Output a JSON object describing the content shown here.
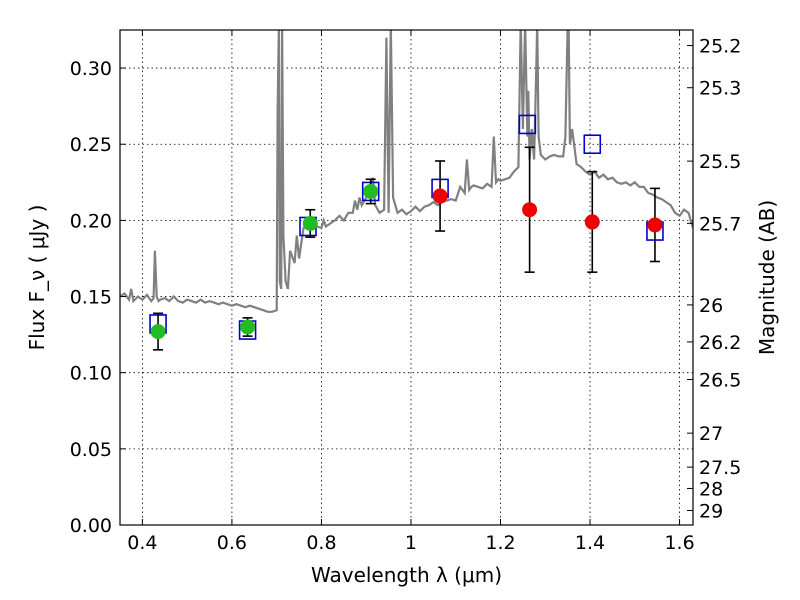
{
  "chart_data": {
    "type": "line",
    "title": "",
    "xlabel": "Wavelength  λ (μm)",
    "ylabel": "Flux  F_ν  ( μJy )",
    "ylabel_right": "Magnitude (AB)",
    "xlim": [
      0.35,
      1.63
    ],
    "ylim": [
      0.0,
      0.325
    ],
    "grid": true,
    "x_ticks": [
      {
        "value": 0.4,
        "label": "0.4"
      },
      {
        "value": 0.6,
        "label": "0.6"
      },
      {
        "value": 0.8,
        "label": "0.8"
      },
      {
        "value": 1.0,
        "label": "1"
      },
      {
        "value": 1.2,
        "label": "1.2"
      },
      {
        "value": 1.4,
        "label": "1.4"
      },
      {
        "value": 1.6,
        "label": "1.6"
      }
    ],
    "y_ticks": [
      {
        "value": 0.0,
        "label": "0.00"
      },
      {
        "value": 0.05,
        "label": "0.05"
      },
      {
        "value": 0.1,
        "label": "0.10"
      },
      {
        "value": 0.15,
        "label": "0.15"
      },
      {
        "value": 0.2,
        "label": "0.20"
      },
      {
        "value": 0.25,
        "label": "0.25"
      },
      {
        "value": 0.3,
        "label": "0.30"
      }
    ],
    "right_ticks": [
      {
        "flux": 0.3148,
        "label": "25.2"
      },
      {
        "flux": 0.2871,
        "label": "25.3"
      },
      {
        "flux": 0.2389,
        "label": "25.5"
      },
      {
        "flux": 0.1981,
        "label": "25.7"
      },
      {
        "flux": 0.1445,
        "label": "26"
      },
      {
        "flux": 0.1202,
        "label": "26.2"
      },
      {
        "flux": 0.0955,
        "label": "26.5"
      },
      {
        "flux": 0.0603,
        "label": "27"
      },
      {
        "flux": 0.038,
        "label": "27.5"
      },
      {
        "flux": 0.024,
        "label": "28"
      },
      {
        "flux": 0.0095,
        "label": "29"
      }
    ],
    "series": [
      {
        "kind": "model-spectrum",
        "color": "#808080",
        "x": [
          0.35,
          0.36,
          0.37,
          0.375,
          0.38,
          0.39,
          0.4,
          0.41,
          0.42,
          0.425,
          0.428,
          0.432,
          0.436,
          0.44,
          0.45,
          0.46,
          0.47,
          0.48,
          0.49,
          0.5,
          0.51,
          0.52,
          0.53,
          0.54,
          0.55,
          0.56,
          0.57,
          0.58,
          0.59,
          0.6,
          0.61,
          0.62,
          0.63,
          0.64,
          0.65,
          0.66,
          0.67,
          0.68,
          0.69,
          0.7,
          0.702,
          0.705,
          0.707,
          0.71,
          0.712,
          0.715,
          0.72,
          0.725,
          0.73,
          0.74,
          0.745,
          0.75,
          0.755,
          0.76,
          0.77,
          0.78,
          0.79,
          0.8,
          0.805,
          0.81,
          0.82,
          0.83,
          0.84,
          0.85,
          0.86,
          0.87,
          0.875,
          0.88,
          0.885,
          0.89,
          0.9,
          0.91,
          0.915,
          0.92,
          0.93,
          0.94,
          0.945,
          0.95,
          0.955,
          0.96,
          0.97,
          0.98,
          0.99,
          1.0,
          1.01,
          1.02,
          1.03,
          1.04,
          1.05,
          1.06,
          1.07,
          1.08,
          1.09,
          1.1,
          1.11,
          1.12,
          1.125,
          1.13,
          1.135,
          1.14,
          1.15,
          1.16,
          1.17,
          1.18,
          1.185,
          1.19,
          1.195,
          1.2,
          1.21,
          1.22,
          1.23,
          1.24,
          1.245,
          1.25,
          1.255,
          1.26,
          1.262,
          1.265,
          1.27,
          1.275,
          1.28,
          1.282,
          1.285,
          1.29,
          1.3,
          1.31,
          1.32,
          1.33,
          1.34,
          1.345,
          1.35,
          1.352,
          1.355,
          1.36,
          1.37,
          1.38,
          1.39,
          1.4,
          1.41,
          1.42,
          1.43,
          1.44,
          1.45,
          1.46,
          1.47,
          1.48,
          1.49,
          1.5,
          1.51,
          1.52,
          1.53,
          1.54,
          1.55,
          1.56,
          1.57,
          1.58,
          1.59,
          1.6,
          1.61,
          1.62,
          1.63
        ],
        "y": [
          0.15,
          0.152,
          0.148,
          0.155,
          0.147,
          0.15,
          0.148,
          0.151,
          0.147,
          0.149,
          0.18,
          0.15,
          0.147,
          0.148,
          0.149,
          0.147,
          0.15,
          0.147,
          0.146,
          0.148,
          0.147,
          0.146,
          0.148,
          0.146,
          0.147,
          0.146,
          0.145,
          0.146,
          0.145,
          0.144,
          0.145,
          0.144,
          0.143,
          0.144,
          0.143,
          0.142,
          0.141,
          0.14,
          0.14,
          0.141,
          0.27,
          0.33,
          0.16,
          0.155,
          0.33,
          0.19,
          0.16,
          0.155,
          0.18,
          0.172,
          0.19,
          0.175,
          0.185,
          0.195,
          0.196,
          0.197,
          0.196,
          0.195,
          0.2,
          0.196,
          0.198,
          0.2,
          0.203,
          0.2,
          0.205,
          0.205,
          0.213,
          0.207,
          0.215,
          0.21,
          0.215,
          0.224,
          0.228,
          0.21,
          0.205,
          0.207,
          0.32,
          0.205,
          0.33,
          0.215,
          0.205,
          0.207,
          0.204,
          0.206,
          0.209,
          0.206,
          0.209,
          0.21,
          0.212,
          0.21,
          0.212,
          0.213,
          0.214,
          0.213,
          0.222,
          0.218,
          0.24,
          0.22,
          0.222,
          0.223,
          0.222,
          0.221,
          0.224,
          0.222,
          0.255,
          0.225,
          0.227,
          0.226,
          0.227,
          0.228,
          0.232,
          0.235,
          0.33,
          0.26,
          0.33,
          0.255,
          0.285,
          0.24,
          0.26,
          0.24,
          0.3,
          0.33,
          0.255,
          0.243,
          0.24,
          0.242,
          0.243,
          0.242,
          0.242,
          0.255,
          0.33,
          0.33,
          0.25,
          0.26,
          0.237,
          0.235,
          0.232,
          0.23,
          0.232,
          0.228,
          0.23,
          0.227,
          0.228,
          0.225,
          0.224,
          0.225,
          0.223,
          0.225,
          0.222,
          0.222,
          0.218,
          0.217,
          0.215,
          0.214,
          0.212,
          0.21,
          0.205,
          0.203,
          0.207,
          0.205,
          0.195
        ]
      },
      {
        "kind": "model-photometry",
        "marker": "open-square",
        "color": "#0000cc",
        "x": [
          0.435,
          0.635,
          0.77,
          0.91,
          1.065,
          1.26,
          1.405,
          1.545
        ],
        "y": [
          0.132,
          0.128,
          0.196,
          0.219,
          0.221,
          0.263,
          0.25,
          0.193
        ]
      },
      {
        "kind": "observed-optical",
        "marker": "filled-circle",
        "color": "#22bb22",
        "x": [
          0.435,
          0.635,
          0.775,
          0.91
        ],
        "y": [
          0.127,
          0.13,
          0.198,
          0.219
        ],
        "yerr": [
          0.012,
          0.006,
          0.009,
          0.008
        ]
      },
      {
        "kind": "observed-nir",
        "marker": "filled-circle",
        "color": "#ee0000",
        "x": [
          1.065,
          1.265,
          1.405,
          1.545
        ],
        "y": [
          0.216,
          0.207,
          0.199,
          0.197
        ],
        "yerr": [
          0.023,
          0.041,
          0.033,
          0.024
        ]
      }
    ]
  }
}
